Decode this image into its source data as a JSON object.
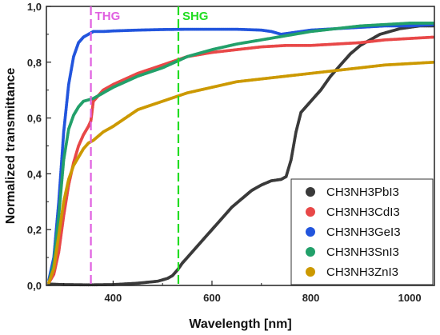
{
  "chart_data": {
    "type": "scatter",
    "xlabel": "Wavelength [nm]",
    "ylabel": "Normalized transmittance",
    "xlim": [
      265,
      1050
    ],
    "ylim": [
      0,
      1.0
    ],
    "x_ticks": [
      400,
      600,
      800,
      1000
    ],
    "x_tick_labels": [
      "400",
      "600",
      "800",
      "1000"
    ],
    "y_ticks": [
      0,
      0.2,
      0.4,
      0.6,
      0.8,
      1.0
    ],
    "y_tick_labels": [
      "0,0",
      "0,2",
      "0,4",
      "0,6",
      "0,8",
      "1,0"
    ],
    "grid": false,
    "legend_position": "bottom-right",
    "markers": [
      {
        "label": "THG",
        "x": 355,
        "color": "#e060e0"
      },
      {
        "label": "SHG",
        "x": 532,
        "color": "#22dd22"
      }
    ],
    "series": [
      {
        "name": "CH3NH3PbI3",
        "color": "#3a3a3a",
        "points": [
          [
            270,
            0.005
          ],
          [
            300,
            0.003
          ],
          [
            350,
            0.002
          ],
          [
            400,
            0.003
          ],
          [
            450,
            0.008
          ],
          [
            490,
            0.015
          ],
          [
            510,
            0.025
          ],
          [
            520,
            0.035
          ],
          [
            530,
            0.055
          ],
          [
            540,
            0.08
          ],
          [
            560,
            0.12
          ],
          [
            580,
            0.16
          ],
          [
            600,
            0.2
          ],
          [
            620,
            0.24
          ],
          [
            640,
            0.28
          ],
          [
            660,
            0.31
          ],
          [
            680,
            0.34
          ],
          [
            700,
            0.36
          ],
          [
            720,
            0.375
          ],
          [
            740,
            0.38
          ],
          [
            750,
            0.39
          ],
          [
            760,
            0.45
          ],
          [
            770,
            0.55
          ],
          [
            780,
            0.62
          ],
          [
            790,
            0.64
          ],
          [
            800,
            0.66
          ],
          [
            820,
            0.7
          ],
          [
            840,
            0.75
          ],
          [
            860,
            0.79
          ],
          [
            880,
            0.83
          ],
          [
            900,
            0.86
          ],
          [
            920,
            0.88
          ],
          [
            940,
            0.9
          ],
          [
            960,
            0.91
          ],
          [
            980,
            0.92
          ],
          [
            1000,
            0.925
          ],
          [
            1020,
            0.93
          ],
          [
            1050,
            0.93
          ]
        ]
      },
      {
        "name": "CH3NH3CdI3",
        "color": "#e84848",
        "points": [
          [
            270,
            0.01
          ],
          [
            280,
            0.04
          ],
          [
            290,
            0.12
          ],
          [
            300,
            0.25
          ],
          [
            310,
            0.36
          ],
          [
            320,
            0.44
          ],
          [
            330,
            0.5
          ],
          [
            340,
            0.54
          ],
          [
            350,
            0.57
          ],
          [
            355,
            0.59
          ],
          [
            360,
            0.66
          ],
          [
            370,
            0.68
          ],
          [
            380,
            0.7
          ],
          [
            400,
            0.72
          ],
          [
            450,
            0.76
          ],
          [
            500,
            0.79
          ],
          [
            550,
            0.82
          ],
          [
            600,
            0.835
          ],
          [
            650,
            0.845
          ],
          [
            700,
            0.855
          ],
          [
            750,
            0.86
          ],
          [
            800,
            0.86
          ],
          [
            850,
            0.865
          ],
          [
            900,
            0.87
          ],
          [
            950,
            0.88
          ],
          [
            1000,
            0.885
          ],
          [
            1050,
            0.89
          ]
        ]
      },
      {
        "name": "CH3NH3GeI3",
        "color": "#2255dd",
        "points": [
          [
            270,
            0.02
          ],
          [
            280,
            0.1
          ],
          [
            290,
            0.3
          ],
          [
            300,
            0.55
          ],
          [
            310,
            0.72
          ],
          [
            320,
            0.82
          ],
          [
            330,
            0.87
          ],
          [
            340,
            0.89
          ],
          [
            350,
            0.9
          ],
          [
            360,
            0.91
          ],
          [
            380,
            0.91
          ],
          [
            400,
            0.912
          ],
          [
            450,
            0.915
          ],
          [
            500,
            0.917
          ],
          [
            550,
            0.918
          ],
          [
            600,
            0.918
          ],
          [
            650,
            0.918
          ],
          [
            700,
            0.915
          ],
          [
            720,
            0.91
          ],
          [
            740,
            0.9
          ],
          [
            760,
            0.905
          ],
          [
            800,
            0.915
          ],
          [
            850,
            0.92
          ],
          [
            900,
            0.925
          ],
          [
            950,
            0.93
          ],
          [
            1000,
            0.93
          ],
          [
            1050,
            0.935
          ]
        ]
      },
      {
        "name": "CH3NH3SnI3",
        "color": "#22a06a",
        "points": [
          [
            270,
            0.01
          ],
          [
            280,
            0.08
          ],
          [
            290,
            0.25
          ],
          [
            300,
            0.45
          ],
          [
            310,
            0.56
          ],
          [
            320,
            0.61
          ],
          [
            330,
            0.64
          ],
          [
            340,
            0.66
          ],
          [
            360,
            0.67
          ],
          [
            380,
            0.69
          ],
          [
            400,
            0.71
          ],
          [
            450,
            0.75
          ],
          [
            500,
            0.78
          ],
          [
            550,
            0.82
          ],
          [
            600,
            0.845
          ],
          [
            650,
            0.865
          ],
          [
            700,
            0.88
          ],
          [
            750,
            0.895
          ],
          [
            800,
            0.91
          ],
          [
            850,
            0.92
          ],
          [
            900,
            0.93
          ],
          [
            950,
            0.935
          ],
          [
            1000,
            0.94
          ],
          [
            1050,
            0.94
          ]
        ]
      },
      {
        "name": "CH3NH3ZnI3",
        "color": "#cc9900",
        "points": [
          [
            270,
            0.01
          ],
          [
            280,
            0.06
          ],
          [
            290,
            0.18
          ],
          [
            300,
            0.3
          ],
          [
            310,
            0.38
          ],
          [
            320,
            0.43
          ],
          [
            330,
            0.46
          ],
          [
            340,
            0.49
          ],
          [
            350,
            0.51
          ],
          [
            360,
            0.52
          ],
          [
            380,
            0.55
          ],
          [
            400,
            0.57
          ],
          [
            450,
            0.63
          ],
          [
            500,
            0.66
          ],
          [
            550,
            0.69
          ],
          [
            600,
            0.71
          ],
          [
            650,
            0.73
          ],
          [
            700,
            0.74
          ],
          [
            750,
            0.75
          ],
          [
            800,
            0.76
          ],
          [
            850,
            0.77
          ],
          [
            900,
            0.78
          ],
          [
            950,
            0.79
          ],
          [
            1000,
            0.795
          ],
          [
            1050,
            0.8
          ]
        ]
      }
    ]
  }
}
